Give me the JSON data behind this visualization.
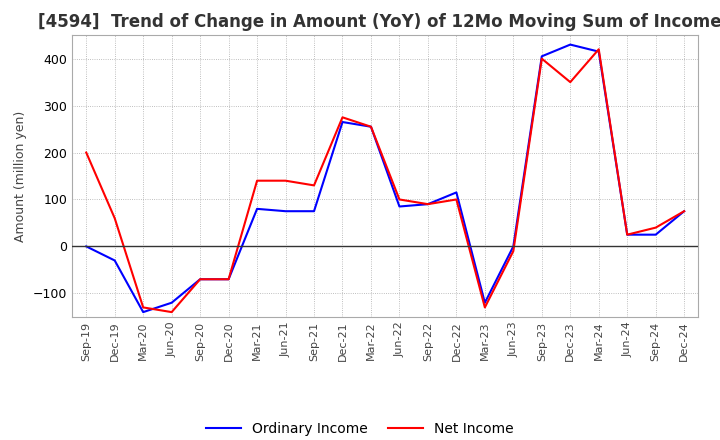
{
  "title": "[4594]  Trend of Change in Amount (YoY) of 12Mo Moving Sum of Incomes",
  "ylabel": "Amount (million yen)",
  "x_labels": [
    "Sep-19",
    "Dec-19",
    "Mar-20",
    "Jun-20",
    "Sep-20",
    "Dec-20",
    "Mar-21",
    "Jun-21",
    "Sep-21",
    "Dec-21",
    "Mar-22",
    "Jun-22",
    "Sep-22",
    "Dec-22",
    "Mar-23",
    "Jun-23",
    "Sep-23",
    "Dec-23",
    "Mar-24",
    "Jun-24",
    "Sep-24",
    "Dec-24"
  ],
  "ordinary_income": [
    0,
    -30,
    -140,
    -120,
    -70,
    -70,
    80,
    75,
    75,
    265,
    255,
    85,
    90,
    115,
    -120,
    0,
    405,
    430,
    415,
    25,
    25,
    75
  ],
  "net_income": [
    200,
    60,
    -130,
    -140,
    -70,
    -70,
    140,
    140,
    130,
    275,
    255,
    100,
    90,
    100,
    -130,
    -10,
    400,
    350,
    420,
    25,
    40,
    75
  ],
  "ordinary_color": "#0000ff",
  "net_color": "#ff0000",
  "ylim": [
    -150,
    450
  ],
  "yticks": [
    -100,
    0,
    100,
    200,
    300,
    400
  ],
  "grid_color": "#aaaaaa",
  "background_color": "#ffffff",
  "title_fontsize": 12,
  "axis_fontsize": 9,
  "legend_labels": [
    "Ordinary Income",
    "Net Income"
  ]
}
